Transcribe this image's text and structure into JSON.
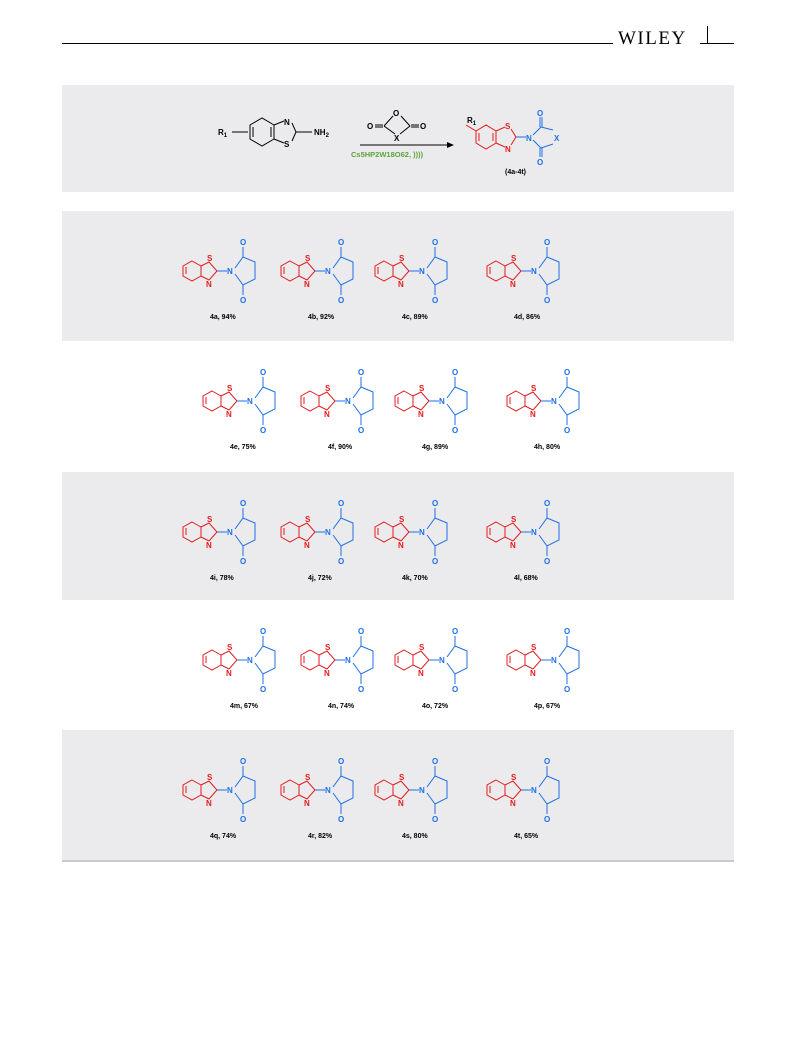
{
  "header": {
    "publisher": "WILEY"
  },
  "scheme": {
    "reactant_r": "R",
    "reactant_r_sub": "1",
    "nh2": "NH",
    "nh2_sub": "2",
    "anhydride_x": "X",
    "catalyst": "Cs5HP2W18O62, ))))",
    "product_range": "(4a-4t)",
    "colors": {
      "benzothiazole": "#e41a1c",
      "imide": "#1e6fe8",
      "catalyst": "#5aa63c"
    }
  },
  "compounds": [
    [
      "4a, 94%",
      "4b, 92%",
      "4c, 89%",
      "4d, 86%"
    ],
    [
      "4e, 75%",
      "4f, 90%",
      "4g, 89%",
      "4h, 80%"
    ],
    [
      "4i, 78%",
      "4j, 72%",
      "4k, 70%",
      "4l, 68%"
    ],
    [
      "4m, 67%",
      "4n, 74%",
      "4o, 72%",
      "4p, 67%"
    ],
    [
      "4q, 74%",
      "4r, 82%",
      "4s, 80%",
      "4t, 65%"
    ]
  ]
}
